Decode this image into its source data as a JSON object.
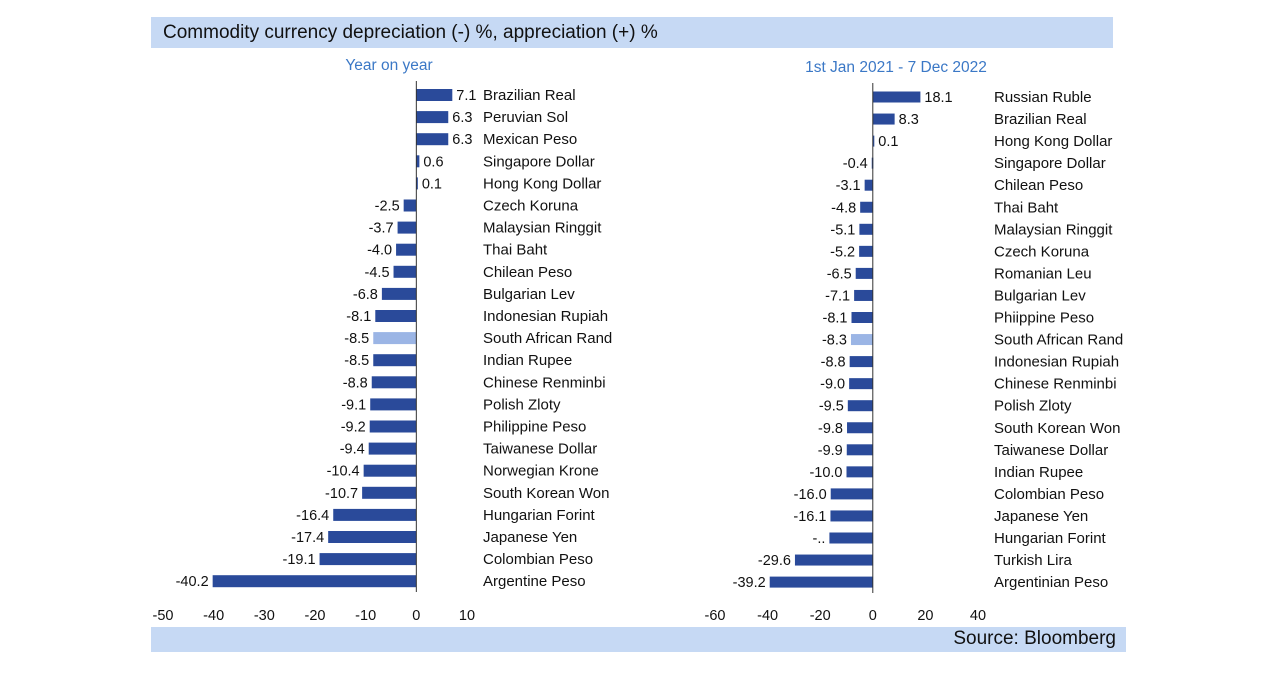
{
  "header": {
    "title": "Commodity currency depreciation (-) %, appreciation (+) %"
  },
  "footer": {
    "source": "Source: Bloomberg"
  },
  "colors": {
    "bar": "#2a4a9a",
    "highlight": "#9bb5e5",
    "band": "#c6d9f4",
    "subtitle": "#3b78c6"
  },
  "chart_data": [
    {
      "type": "bar",
      "orientation": "horizontal",
      "subtitle": "Year on year",
      "xlim": [
        -50,
        10
      ],
      "xticks": [
        -50,
        -40,
        -30,
        -20,
        -10,
        0,
        10
      ],
      "categories": [
        "Brazilian Real",
        "Peruvian Sol",
        "Mexican Peso",
        "Singapore Dollar",
        "Hong Kong Dollar",
        "Czech Koruna",
        "Malaysian Ringgit",
        "Thai Baht",
        "Chilean Peso",
        "Bulgarian Lev",
        "Indonesian Rupiah",
        "South African Rand",
        "Indian Rupee",
        "Chinese Renminbi",
        "Polish Zloty",
        "Philippine Peso",
        "Taiwanese Dollar",
        "Norwegian Krone",
        "South Korean Won",
        "Hungarian Forint",
        "Japanese Yen",
        "Colombian Peso",
        "Argentine Peso"
      ],
      "values": [
        7.1,
        6.3,
        6.3,
        0.6,
        0.1,
        -2.5,
        -3.7,
        -4.0,
        -4.5,
        -6.8,
        -8.1,
        -8.5,
        -8.5,
        -8.8,
        -9.1,
        -9.2,
        -9.4,
        -10.4,
        -10.7,
        -16.4,
        -17.4,
        -19.1,
        -40.2
      ],
      "labels": [
        "7.1",
        "6.3",
        "6.3",
        "0.6",
        "0.1",
        "-2.5",
        "-3.7",
        "-4.0",
        "-4.5",
        "-6.8",
        "-8.1",
        "-8.5",
        "-8.5",
        "-8.8",
        "-9.1",
        "-9.2",
        "-9.4",
        "-10.4",
        "-10.7",
        "-16.4",
        "-17.4",
        "-19.1",
        "-40.2"
      ],
      "highlight": [
        "South African Rand"
      ]
    },
    {
      "type": "bar",
      "orientation": "horizontal",
      "subtitle": "1st Jan 2021 - 7 Dec 2022",
      "xlim": [
        -60,
        40
      ],
      "xticks": [
        -60,
        -40,
        -20,
        0,
        20,
        40
      ],
      "categories": [
        "Russian Ruble",
        "Brazilian Real",
        "Hong Kong Dollar",
        "Singapore Dollar",
        "Chilean Peso",
        "Thai Baht",
        "Malaysian Ringgit",
        "Czech Koruna",
        "Romanian Leu",
        "Bulgarian Lev",
        "Phiippine Peso",
        "South African Rand",
        "Indonesian Rupiah",
        "Chinese Renminbi",
        "Polish Zloty",
        "South Korean Won",
        "Taiwanese Dollar",
        "Indian Rupee",
        "Colombian Peso",
        "Japanese Yen",
        "Hungarian Forint",
        "Turkish Lira",
        "Argentinian Peso"
      ],
      "values": [
        18.1,
        8.3,
        0.1,
        -0.4,
        -3.1,
        -4.8,
        -5.1,
        -5.2,
        -6.5,
        -7.1,
        -8.1,
        -8.3,
        -8.8,
        -9.0,
        -9.5,
        -9.8,
        -9.9,
        -10.0,
        -16.0,
        -16.1,
        -16.5,
        -29.6,
        -39.2
      ],
      "labels": [
        "18.1",
        "8.3",
        "0.1",
        "-0.4",
        "-3.1",
        "-4.8",
        "-5.1",
        "-5.2",
        "-6.5",
        "-7.1",
        "-8.1",
        "-8.3",
        "-8.8",
        "-9.0",
        "-9.5",
        "-9.8",
        "-9.9",
        "-10.0",
        "-16.0",
        "-16.1",
        "-..",
        "-29.6",
        "-39.2"
      ],
      "highlight": [
        "South African Rand"
      ]
    }
  ]
}
